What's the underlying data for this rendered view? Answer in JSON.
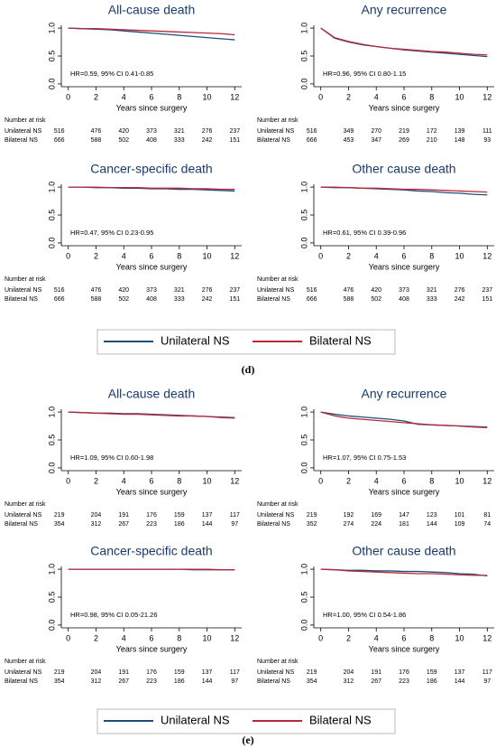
{
  "chart_data": [
    {
      "type": "line",
      "title": "All-cause death",
      "xlabel": "Years since surgery",
      "annotation": "HR=0.59, 95% CI 0.41-0.85",
      "x": [
        0,
        1,
        2,
        3,
        4,
        5,
        6,
        7,
        8,
        9,
        10,
        11,
        12
      ],
      "series": [
        {
          "name": "Unilateral NS",
          "color": "#1f4e79",
          "values": [
            1,
            0.99,
            0.98,
            0.97,
            0.95,
            0.93,
            0.91,
            0.89,
            0.87,
            0.85,
            0.83,
            0.81,
            0.79
          ]
        },
        {
          "name": "Bilateral NS",
          "color": "#b8283c",
          "values": [
            1,
            0.99,
            0.99,
            0.98,
            0.97,
            0.96,
            0.95,
            0.94,
            0.93,
            0.92,
            0.91,
            0.9,
            0.88
          ]
        }
      ],
      "xlim": [
        -0.5,
        12.5
      ],
      "xticks": [
        0,
        2,
        4,
        6,
        8,
        10,
        12
      ],
      "ylim": [
        -0.05,
        1.05
      ],
      "yticks": [
        {
          "value": 0,
          "label": "0.0"
        },
        {
          "value": 0.5,
          "label": "0.5"
        },
        {
          "value": 1,
          "label": "1.0"
        }
      ],
      "risk_table": {
        "title": "Number at risk",
        "rows": [
          {
            "label": "Unilateral NS",
            "values": [
              516,
              476,
              420,
              373,
              321,
              276,
              237
            ]
          },
          {
            "label": "Bilateral NS",
            "values": [
              666,
              588,
              502,
              408,
              333,
              242,
              151
            ]
          }
        ]
      }
    },
    {
      "type": "line",
      "title": "Any recurrence",
      "xlabel": "Years since surgery",
      "annotation": "HR=0.96, 95% CI 0.80-1.15",
      "x": [
        0,
        1,
        2,
        3,
        4,
        5,
        6,
        7,
        8,
        9,
        10,
        11,
        12
      ],
      "series": [
        {
          "name": "Unilateral NS",
          "color": "#1f4e79",
          "values": [
            1,
            0.82,
            0.75,
            0.7,
            0.67,
            0.64,
            0.61,
            0.59,
            0.57,
            0.55,
            0.53,
            0.51,
            0.49
          ]
        },
        {
          "name": "Bilateral NS",
          "color": "#b8283c",
          "values": [
            1,
            0.83,
            0.76,
            0.71,
            0.67,
            0.64,
            0.62,
            0.6,
            0.58,
            0.57,
            0.55,
            0.53,
            0.52
          ]
        }
      ],
      "xlim": [
        -0.5,
        12.5
      ],
      "xticks": [
        0,
        2,
        4,
        6,
        8,
        10,
        12
      ],
      "ylim": [
        -0.05,
        1.05
      ],
      "yticks": [
        {
          "value": 0,
          "label": "0.0"
        },
        {
          "value": 0.5,
          "label": "0.5"
        },
        {
          "value": 1,
          "label": "1.0"
        }
      ],
      "risk_table": {
        "title": "Number at risk",
        "rows": [
          {
            "label": "Unilateral NS",
            "values": [
              516,
              349,
              270,
              219,
              172,
              139,
              111
            ]
          },
          {
            "label": "Bilateral NS",
            "values": [
              666,
              453,
              347,
              269,
              210,
              148,
              93
            ]
          }
        ]
      }
    },
    {
      "type": "line",
      "title": "Cancer-specific death",
      "xlabel": "Years since surgery",
      "annotation": "HR=0.47, 95% CI 0.23-0.95",
      "x": [
        0,
        1,
        2,
        3,
        4,
        5,
        6,
        7,
        8,
        9,
        10,
        11,
        12
      ],
      "series": [
        {
          "name": "Unilateral NS",
          "color": "#1f4e79",
          "values": [
            1,
            1,
            0.99,
            0.99,
            0.98,
            0.98,
            0.97,
            0.97,
            0.96,
            0.96,
            0.95,
            0.94,
            0.93
          ]
        },
        {
          "name": "Bilateral NS",
          "color": "#b8283c",
          "values": [
            1,
            1,
            1,
            0.99,
            0.99,
            0.99,
            0.98,
            0.98,
            0.98,
            0.97,
            0.97,
            0.96,
            0.96
          ]
        }
      ],
      "xlim": [
        -0.5,
        12.5
      ],
      "xticks": [
        0,
        2,
        4,
        6,
        8,
        10,
        12
      ],
      "ylim": [
        -0.05,
        1.05
      ],
      "yticks": [
        {
          "value": 0,
          "label": "0.0"
        },
        {
          "value": 0.5,
          "label": "0.5"
        },
        {
          "value": 1,
          "label": "1.0"
        }
      ],
      "risk_table": {
        "title": "Number at risk",
        "rows": [
          {
            "label": "Unilateral NS",
            "values": [
              516,
              476,
              420,
              373,
              321,
              276,
              237
            ]
          },
          {
            "label": "Bilateral NS",
            "values": [
              666,
              588,
              502,
              408,
              333,
              242,
              151
            ]
          }
        ]
      }
    },
    {
      "type": "line",
      "title": "Other cause death",
      "xlabel": "Years since surgery",
      "annotation": "HR=0.61, 95% CI 0.39-0.96",
      "x": [
        0,
        1,
        2,
        3,
        4,
        5,
        6,
        7,
        8,
        9,
        10,
        11,
        12
      ],
      "series": [
        {
          "name": "Unilateral NS",
          "color": "#1f4e79",
          "values": [
            1,
            0.99,
            0.99,
            0.98,
            0.97,
            0.96,
            0.95,
            0.93,
            0.92,
            0.9,
            0.89,
            0.87,
            0.86
          ]
        },
        {
          "name": "Bilateral NS",
          "color": "#b8283c",
          "values": [
            1,
            1,
            0.99,
            0.98,
            0.98,
            0.97,
            0.96,
            0.96,
            0.95,
            0.94,
            0.93,
            0.92,
            0.91
          ]
        }
      ],
      "xlim": [
        -0.5,
        12.5
      ],
      "xticks": [
        0,
        2,
        4,
        6,
        8,
        10,
        12
      ],
      "ylim": [
        -0.05,
        1.05
      ],
      "yticks": [
        {
          "value": 0,
          "label": "0.0"
        },
        {
          "value": 0.5,
          "label": "0.5"
        },
        {
          "value": 1,
          "label": "1.0"
        }
      ],
      "risk_table": {
        "title": "Number at risk",
        "rows": [
          {
            "label": "Unilateral NS",
            "values": [
              516,
              476,
              420,
              373,
              321,
              276,
              237
            ]
          },
          {
            "label": "Bilateral NS",
            "values": [
              666,
              588,
              502,
              408,
              333,
              242,
              151
            ]
          }
        ]
      }
    },
    {
      "type": "line",
      "title": "All-cause death",
      "xlabel": "Years since surgery",
      "annotation": "HR=1.09, 95% CI 0.60-1.98",
      "x": [
        0,
        1,
        2,
        3,
        4,
        5,
        6,
        7,
        8,
        9,
        10,
        11,
        12
      ],
      "series": [
        {
          "name": "Unilateral NS",
          "color": "#1f4e79",
          "values": [
            1,
            0.99,
            0.98,
            0.98,
            0.97,
            0.97,
            0.96,
            0.95,
            0.94,
            0.93,
            0.92,
            0.91,
            0.9
          ]
        },
        {
          "name": "Bilateral NS",
          "color": "#b8283c",
          "values": [
            1,
            0.99,
            0.98,
            0.97,
            0.96,
            0.96,
            0.95,
            0.94,
            0.93,
            0.93,
            0.92,
            0.9,
            0.89
          ]
        }
      ],
      "xlim": [
        -0.5,
        12.5
      ],
      "xticks": [
        0,
        2,
        4,
        6,
        8,
        10,
        12
      ],
      "ylim": [
        -0.05,
        1.05
      ],
      "yticks": [
        {
          "value": 0,
          "label": "0.0"
        },
        {
          "value": 0.5,
          "label": "0.5"
        },
        {
          "value": 1,
          "label": "1.0"
        }
      ],
      "risk_table": {
        "title": "Number at risk",
        "rows": [
          {
            "label": "Unilateral NS",
            "values": [
              219,
              204,
              191,
              176,
              159,
              137,
              117
            ]
          },
          {
            "label": "Bilateral NS",
            "values": [
              354,
              312,
              267,
              223,
              186,
              144,
              97
            ]
          }
        ]
      }
    },
    {
      "type": "line",
      "title": "Any recurrence",
      "xlabel": "Years since surgery",
      "annotation": "HR=1.07, 95% CI 0.75-1.53",
      "x": [
        0,
        1,
        2,
        3,
        4,
        5,
        6,
        7,
        8,
        9,
        10,
        11,
        12
      ],
      "series": [
        {
          "name": "Unilateral NS",
          "color": "#1f4e79",
          "values": [
            1,
            0.96,
            0.93,
            0.91,
            0.89,
            0.87,
            0.84,
            0.78,
            0.77,
            0.76,
            0.75,
            0.74,
            0.73
          ]
        },
        {
          "name": "Bilateral NS",
          "color": "#b8283c",
          "values": [
            1,
            0.93,
            0.89,
            0.87,
            0.85,
            0.83,
            0.81,
            0.79,
            0.77,
            0.76,
            0.75,
            0.73,
            0.72
          ]
        }
      ],
      "xlim": [
        -0.5,
        12.5
      ],
      "xticks": [
        0,
        2,
        4,
        6,
        8,
        10,
        12
      ],
      "ylim": [
        -0.05,
        1.05
      ],
      "yticks": [
        {
          "value": 0,
          "label": "0.0"
        },
        {
          "value": 0.5,
          "label": "0.5"
        },
        {
          "value": 1,
          "label": "1.0"
        }
      ],
      "risk_table": {
        "title": "Number at risk",
        "rows": [
          {
            "label": "Unilateral NS",
            "values": [
              219,
              192,
              169,
              147,
              123,
              101,
              81
            ]
          },
          {
            "label": "Bilateral NS",
            "values": [
              352,
              274,
              224,
              181,
              144,
              109,
              74
            ]
          }
        ]
      }
    },
    {
      "type": "line",
      "title": "Cancer-specific death",
      "xlabel": "Years since surgery",
      "annotation": "HR=0.98, 95% CI 0.05-21.26",
      "x": [
        0,
        1,
        2,
        3,
        4,
        5,
        6,
        7,
        8,
        9,
        10,
        11,
        12
      ],
      "series": [
        {
          "name": "Unilateral NS",
          "color": "#1f4e79",
          "values": [
            1,
            1,
            1,
            1,
            1,
            1,
            1,
            1,
            1,
            0.99,
            0.99,
            0.99,
            0.99
          ]
        },
        {
          "name": "Bilateral NS",
          "color": "#b8283c",
          "values": [
            1,
            1,
            1,
            1,
            1,
            1,
            1,
            1,
            1,
            1,
            1,
            0.99,
            0.99
          ]
        }
      ],
      "xlim": [
        -0.5,
        12.5
      ],
      "xticks": [
        0,
        2,
        4,
        6,
        8,
        10,
        12
      ],
      "ylim": [
        -0.05,
        1.05
      ],
      "yticks": [
        {
          "value": 0,
          "label": "0.0"
        },
        {
          "value": 0.5,
          "label": "0.5"
        },
        {
          "value": 1,
          "label": "1.0"
        }
      ],
      "risk_table": {
        "title": "Number at risk",
        "rows": [
          {
            "label": "Unilateral NS",
            "values": [
              219,
              204,
              191,
              176,
              159,
              137,
              117
            ]
          },
          {
            "label": "Bilateral NS",
            "values": [
              354,
              312,
              267,
              223,
              186,
              144,
              97
            ]
          }
        ]
      }
    },
    {
      "type": "line",
      "title": "Other cause death",
      "xlabel": "Years since surgery",
      "annotation": "HR=1.00, 95% CI 0.54-1.86",
      "x": [
        0,
        1,
        2,
        3,
        4,
        5,
        6,
        7,
        8,
        9,
        10,
        11,
        12
      ],
      "series": [
        {
          "name": "Unilateral NS",
          "color": "#1f4e79",
          "values": [
            1,
            0.99,
            0.98,
            0.98,
            0.97,
            0.97,
            0.96,
            0.96,
            0.95,
            0.94,
            0.92,
            0.91,
            0.88
          ]
        },
        {
          "name": "Bilateral NS",
          "color": "#b8283c",
          "values": [
            1,
            0.99,
            0.97,
            0.96,
            0.95,
            0.94,
            0.93,
            0.92,
            0.92,
            0.91,
            0.9,
            0.89,
            0.89
          ]
        }
      ],
      "xlim": [
        -0.5,
        12.5
      ],
      "xticks": [
        0,
        2,
        4,
        6,
        8,
        10,
        12
      ],
      "ylim": [
        -0.05,
        1.05
      ],
      "yticks": [
        {
          "value": 0,
          "label": "0.0"
        },
        {
          "value": 0.5,
          "label": "0.5"
        },
        {
          "value": 1,
          "label": "1.0"
        }
      ],
      "risk_table": {
        "title": "Number at risk",
        "rows": [
          {
            "label": "Unilateral NS",
            "values": [
              219,
              204,
              191,
              176,
              159,
              137,
              117
            ]
          },
          {
            "label": "Bilateral NS",
            "values": [
              354,
              312,
              267,
              223,
              186,
              144,
              97
            ]
          }
        ]
      }
    }
  ],
  "figure_labels": [
    "(d)",
    "(e)"
  ]
}
